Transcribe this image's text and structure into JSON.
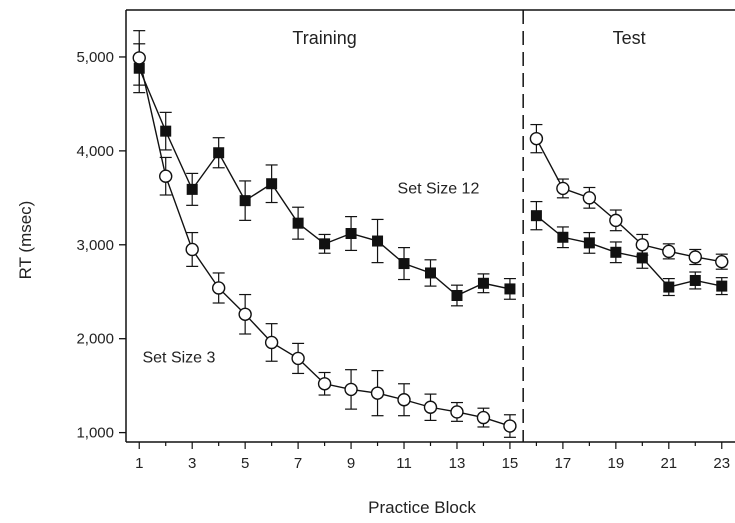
{
  "chart_data": {
    "type": "line",
    "xlabel": "Practice Block",
    "ylabel": "RT (msec)",
    "xlim": [
      0.5,
      23.5
    ],
    "ylim": [
      900,
      5500
    ],
    "x_ticks": [
      1,
      3,
      5,
      7,
      9,
      11,
      13,
      15,
      17,
      19,
      21,
      23
    ],
    "x_tick_labels": [
      "1",
      "3",
      "5",
      "7",
      "9",
      "11",
      "13",
      "15",
      "17",
      "19",
      "21",
      "23"
    ],
    "y_ticks": [
      1000,
      2000,
      3000,
      4000,
      5000
    ],
    "y_tick_labels": [
      "1,000",
      "2,000",
      "3,000",
      "4,000",
      "5,000"
    ],
    "phase_divider_x": 15.5,
    "phases": [
      {
        "label": "Training",
        "center_x": 8
      },
      {
        "label": "Test",
        "center_x": 19.5
      }
    ],
    "annotations": [
      {
        "text": "Set Size 12",
        "x": 12.3,
        "y": 3600
      },
      {
        "text": "Set Size 3",
        "x": 2.5,
        "y": 1800
      }
    ],
    "series": [
      {
        "marker": "square-filled",
        "color": "#111111",
        "segments": [
          {
            "x": [
              1,
              2,
              3,
              4,
              5,
              6,
              7,
              8,
              9,
              10,
              11,
              12,
              13,
              14,
              15
            ],
            "y": [
              4880,
              4210,
              3590,
              3980,
              3470,
              3650,
              3230,
              3010,
              3120,
              3040,
              2800,
              2700,
              2460,
              2590,
              2530
            ],
            "err": [
              260,
              200,
              170,
              160,
              210,
              200,
              170,
              100,
              180,
              230,
              170,
              140,
              110,
              100,
              110
            ]
          },
          {
            "x": [
              16,
              17,
              18,
              19,
              20,
              21,
              22,
              23
            ],
            "y": [
              3310,
              3080,
              3020,
              2920,
              2860,
              2550,
              2620,
              2560
            ],
            "err": [
              150,
              110,
              110,
              110,
              110,
              90,
              90,
              90
            ]
          }
        ]
      },
      {
        "marker": "circle-open",
        "color": "#111111",
        "segments": [
          {
            "x": [
              1,
              2,
              3,
              4,
              5,
              6,
              7,
              8,
              9,
              10,
              11,
              12,
              13,
              14,
              15
            ],
            "y": [
              4990,
              3730,
              2950,
              2540,
              2260,
              1960,
              1790,
              1520,
              1460,
              1420,
              1350,
              1270,
              1220,
              1160,
              1070
            ],
            "err": [
              290,
              200,
              180,
              160,
              210,
              200,
              160,
              120,
              210,
              240,
              170,
              140,
              100,
              100,
              120
            ]
          },
          {
            "x": [
              16,
              17,
              18,
              19,
              20,
              21,
              22,
              23
            ],
            "y": [
              4130,
              3600,
              3500,
              3260,
              3000,
              2930,
              2870,
              2820
            ],
            "err": [
              150,
              100,
              110,
              110,
              110,
              80,
              80,
              80
            ]
          }
        ]
      }
    ]
  }
}
